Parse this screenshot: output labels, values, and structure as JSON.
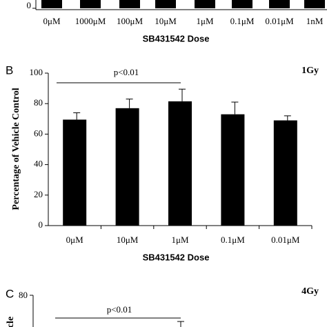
{
  "chart_data": [
    {
      "type": "bar",
      "categories": [
        "0μM",
        "1000μM",
        "100μM",
        "10μM",
        "1μM",
        "0.1μM",
        "0.01μM",
        "1nM"
      ],
      "xlabel": "SB431542 Dose",
      "yticks": [
        0
      ],
      "color": "#000000"
    },
    {
      "type": "bar",
      "panel": "B",
      "title": "1Gy",
      "categories": [
        "0μM",
        "10μM",
        "1μM",
        "0.1μM",
        "0.01μM"
      ],
      "values": [
        69.5,
        77,
        81.5,
        73,
        69
      ],
      "errors": [
        4.5,
        6,
        8,
        8,
        3
      ],
      "ylim": [
        0,
        100
      ],
      "yticks": [
        0,
        20,
        40,
        60,
        80,
        100
      ],
      "ylabel": "Percentage of Vehicle Control",
      "xlabel": "SB431542 Dose",
      "annotation": "p<0.01",
      "color": "#000000"
    },
    {
      "type": "bar",
      "panel": "C",
      "title": "4Gy",
      "yticks": [
        80
      ],
      "ylabel": "cle",
      "annotation": "p<0.01"
    }
  ]
}
